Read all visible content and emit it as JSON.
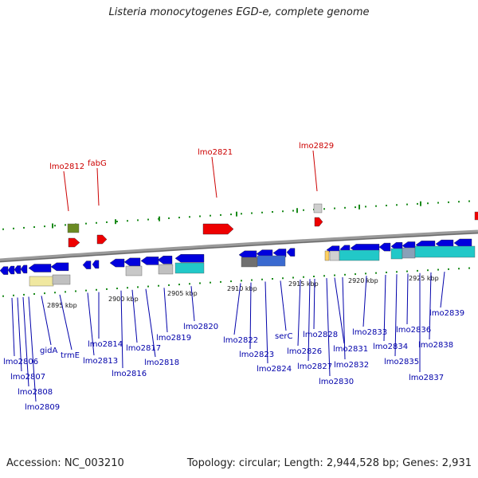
{
  "title": "Listeria monocytogenes EGD-e, complete genome",
  "footer": {
    "accession": "Accession: NC_003210",
    "summary": "Topology: circular; Length: 2,944,528 bp; Genes: 2,931"
  },
  "colors": {
    "forward_gene": "#0000dd",
    "highlight_gene": "#ee0000",
    "cyan_block": "#22c8c8",
    "tick_green": "#1a8a1a",
    "backbone": "#808080",
    "label_blue": "#0000aa",
    "label_red": "#cc0000"
  },
  "scale_labels": [
    "2895 kbp",
    "2900 kbp",
    "2905 kbp",
    "2910 kbp",
    "2915 kbp",
    "2920 kbp",
    "2925 kbp"
  ],
  "top_labels": [
    "lmo2812",
    "fabG",
    "lmo2821",
    "lmo2829"
  ],
  "bottom_labels": [
    "lmo2806",
    "lmo2807",
    "lmo2808",
    "lmo2809",
    "gidA",
    "trmE",
    "lmo2813",
    "lmo2814",
    "lmo2816",
    "lmo2817",
    "lmo2818",
    "lmo2819",
    "lmo2820",
    "lmo2822",
    "lmo2823",
    "lmo2824",
    "serC",
    "lmo2826",
    "lmo2827",
    "lmo2828",
    "lmo2830",
    "lmo2831",
    "lmo2832",
    "lmo2833",
    "lmo2834",
    "lmo2835",
    "lmo2836",
    "lmo2837",
    "lmo2838",
    "lmo2839"
  ]
}
